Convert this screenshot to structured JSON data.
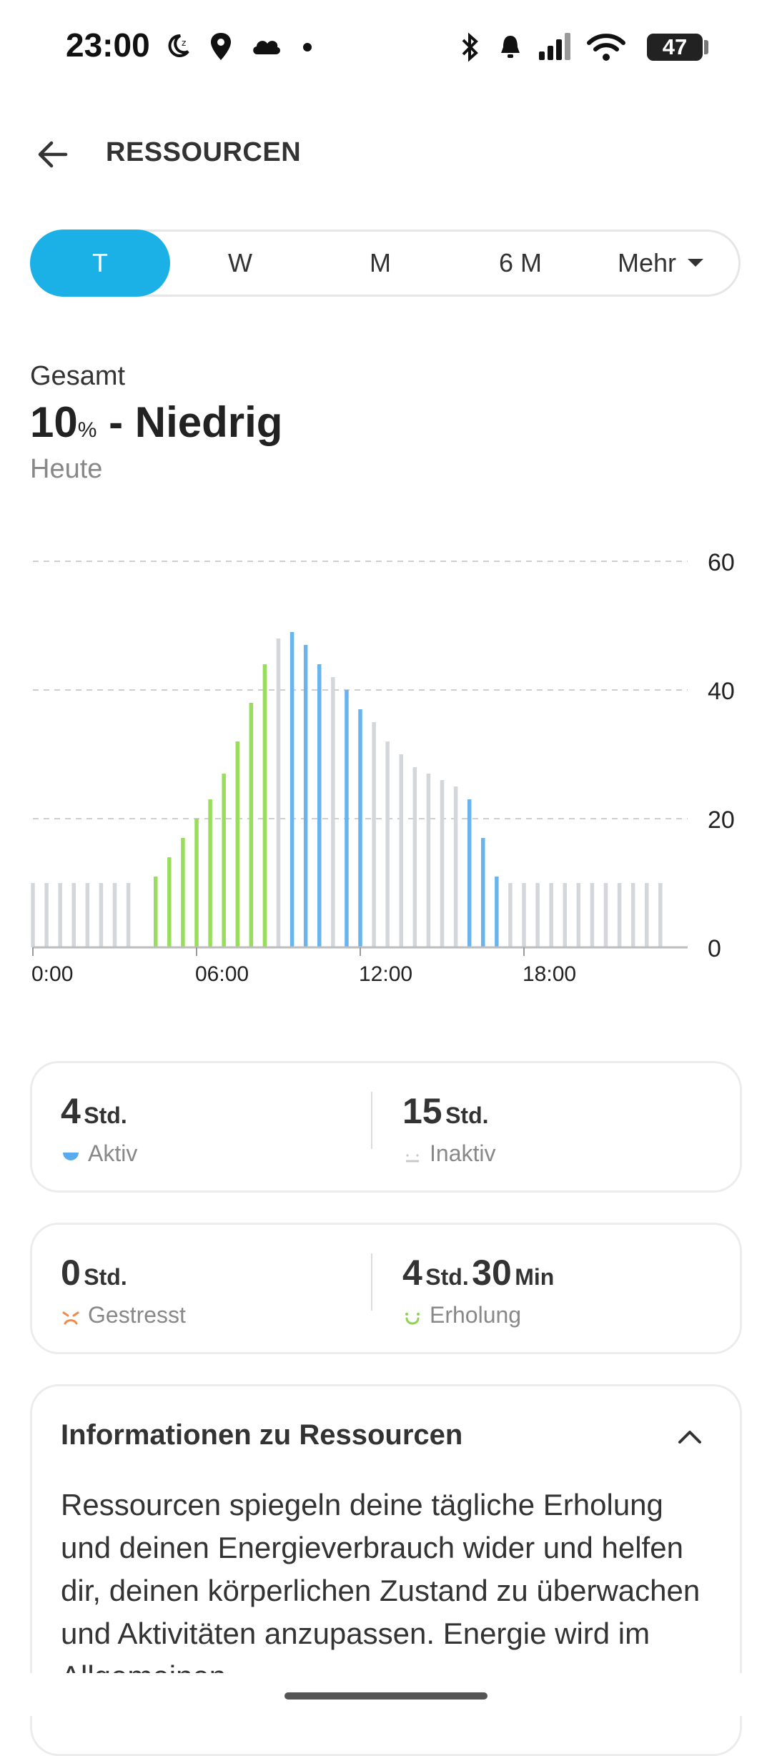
{
  "status_bar": {
    "time": "23:00",
    "battery": "47",
    "icons": [
      "moon-icon",
      "location-icon",
      "cloud-icon",
      "dot-icon",
      "bluetooth-icon",
      "alarm-icon",
      "signal-icon",
      "wifi-icon",
      "battery-icon"
    ]
  },
  "header": {
    "title": "RESSOURCEN",
    "back_icon": "arrow-left-icon"
  },
  "tabs": [
    {
      "label": "T",
      "active": true
    },
    {
      "label": "W",
      "active": false
    },
    {
      "label": "M",
      "active": false
    },
    {
      "label": "6 M",
      "active": false
    },
    {
      "label": "Mehr",
      "active": false,
      "icon": "caret-down-icon"
    }
  ],
  "summary": {
    "label": "Gesamt",
    "value": "10",
    "unit": "%",
    "level": " - Niedrig",
    "date": "Heute"
  },
  "chart_data": {
    "type": "bar",
    "title": "",
    "xlabel": "",
    "ylabel": "",
    "ylim": [
      0,
      60
    ],
    "yticks": [
      "0",
      "20",
      "40",
      "60"
    ],
    "xtick_labels": [
      "0:00",
      "06:00",
      "12:00",
      "18:00"
    ],
    "xtick_hours": [
      0,
      6,
      12,
      18
    ],
    "grid": true,
    "colors": {
      "inactive": "#d3d6da",
      "active": "#6ab4ee",
      "recovery": "#99dd5d"
    },
    "bars": [
      {
        "hour": 0.0,
        "value": 10,
        "state": "inactive"
      },
      {
        "hour": 0.5,
        "value": 10,
        "state": "inactive"
      },
      {
        "hour": 1.0,
        "value": 10,
        "state": "inactive"
      },
      {
        "hour": 1.5,
        "value": 10,
        "state": "inactive"
      },
      {
        "hour": 2.0,
        "value": 10,
        "state": "inactive"
      },
      {
        "hour": 2.5,
        "value": 10,
        "state": "inactive"
      },
      {
        "hour": 3.0,
        "value": 10,
        "state": "inactive"
      },
      {
        "hour": 3.5,
        "value": 10,
        "state": "inactive"
      },
      {
        "hour": 4.5,
        "value": 11,
        "state": "recovery"
      },
      {
        "hour": 5.0,
        "value": 14,
        "state": "recovery"
      },
      {
        "hour": 5.5,
        "value": 17,
        "state": "recovery"
      },
      {
        "hour": 6.0,
        "value": 20,
        "state": "recovery"
      },
      {
        "hour": 6.5,
        "value": 23,
        "state": "recovery"
      },
      {
        "hour": 7.0,
        "value": 27,
        "state": "recovery"
      },
      {
        "hour": 7.5,
        "value": 32,
        "state": "recovery"
      },
      {
        "hour": 8.0,
        "value": 38,
        "state": "recovery"
      },
      {
        "hour": 8.5,
        "value": 44,
        "state": "recovery"
      },
      {
        "hour": 9.0,
        "value": 48,
        "state": "inactive"
      },
      {
        "hour": 9.5,
        "value": 49,
        "state": "active"
      },
      {
        "hour": 10.0,
        "value": 47,
        "state": "active"
      },
      {
        "hour": 10.5,
        "value": 44,
        "state": "active"
      },
      {
        "hour": 11.0,
        "value": 42,
        "state": "inactive"
      },
      {
        "hour": 11.5,
        "value": 40,
        "state": "active"
      },
      {
        "hour": 12.0,
        "value": 37,
        "state": "active"
      },
      {
        "hour": 12.5,
        "value": 35,
        "state": "inactive"
      },
      {
        "hour": 13.0,
        "value": 32,
        "state": "inactive"
      },
      {
        "hour": 13.5,
        "value": 30,
        "state": "inactive"
      },
      {
        "hour": 14.0,
        "value": 28,
        "state": "inactive"
      },
      {
        "hour": 14.5,
        "value": 27,
        "state": "inactive"
      },
      {
        "hour": 15.0,
        "value": 26,
        "state": "inactive"
      },
      {
        "hour": 15.5,
        "value": 25,
        "state": "inactive"
      },
      {
        "hour": 16.0,
        "value": 23,
        "state": "active"
      },
      {
        "hour": 16.5,
        "value": 17,
        "state": "active"
      },
      {
        "hour": 17.0,
        "value": 11,
        "state": "active"
      },
      {
        "hour": 17.5,
        "value": 10,
        "state": "inactive"
      },
      {
        "hour": 18.0,
        "value": 10,
        "state": "inactive"
      },
      {
        "hour": 18.5,
        "value": 10,
        "state": "inactive"
      },
      {
        "hour": 19.0,
        "value": 10,
        "state": "inactive"
      },
      {
        "hour": 19.5,
        "value": 10,
        "state": "inactive"
      },
      {
        "hour": 20.0,
        "value": 10,
        "state": "inactive"
      },
      {
        "hour": 20.5,
        "value": 10,
        "state": "inactive"
      },
      {
        "hour": 21.0,
        "value": 10,
        "state": "inactive"
      },
      {
        "hour": 21.5,
        "value": 10,
        "state": "inactive"
      },
      {
        "hour": 22.0,
        "value": 10,
        "state": "inactive"
      },
      {
        "hour": 22.5,
        "value": 10,
        "state": "inactive"
      },
      {
        "hour": 23.0,
        "value": 10,
        "state": "inactive"
      }
    ]
  },
  "stats": {
    "aktiv": {
      "value": "4",
      "unit": "Std.",
      "label": "Aktiv",
      "icon": "active-face-icon",
      "color": "#5aabee"
    },
    "inaktiv": {
      "value": "15",
      "unit": "Std.",
      "label": "Inaktiv",
      "icon": "inactive-face-icon",
      "color": "#c8c8c8"
    },
    "gestresst": {
      "value": "0",
      "unit": "Std.",
      "label": "Gestresst",
      "icon": "stressed-face-icon",
      "color": "#f2884a"
    },
    "erholung": {
      "value": "4",
      "unit": "Std.",
      "value2": "30",
      "unit2": "Min",
      "label": "Erholung",
      "icon": "recovery-face-icon",
      "color": "#8cd44e"
    }
  },
  "info": {
    "title": "Informationen zu Ressourcen",
    "icon": "chevron-up-icon",
    "text": "Ressourcen spiegeln deine tägliche Erholung und deinen Energieverbrauch wider und helfen dir, deinen körperlichen Zustand zu überwachen und Aktivitäten anzupassen. Energie wird im Allgemeinen"
  }
}
